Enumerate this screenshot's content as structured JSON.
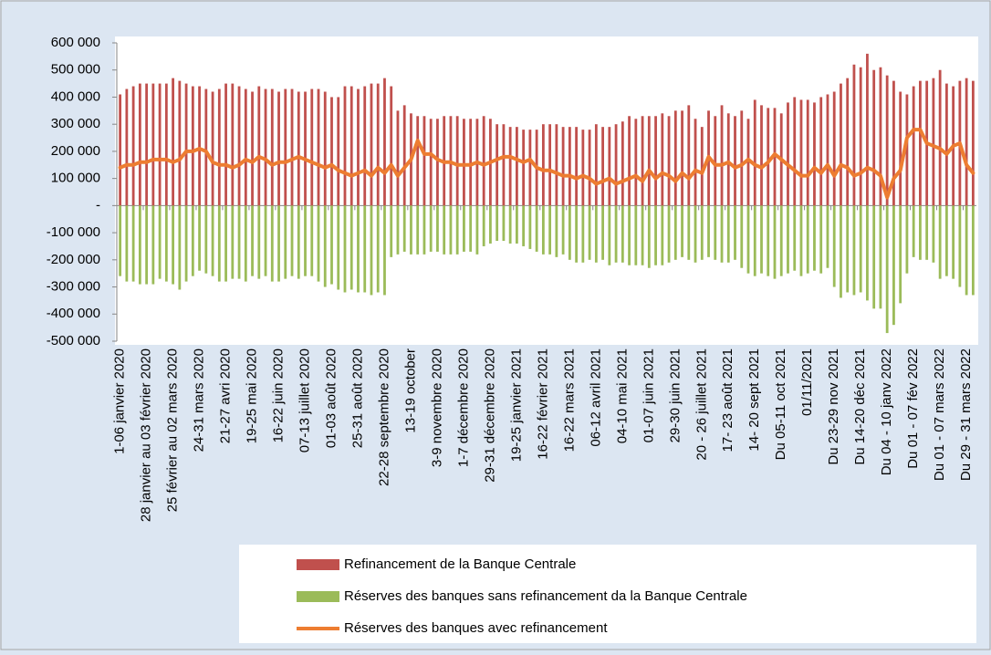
{
  "chart_data": {
    "type": "bar",
    "categories": [
      "1-06 janvier 2020",
      null,
      null,
      null,
      "28 janvier au 03 février 2020",
      null,
      null,
      null,
      "25 février au 02 mars 2020",
      null,
      null,
      null,
      "24-31 mars 2020",
      null,
      null,
      null,
      "21-27 avri 2020",
      null,
      null,
      null,
      "19-25 mai 2020",
      null,
      null,
      null,
      "16-22 juin 2020",
      null,
      null,
      null,
      "07-13 juillet 2020",
      null,
      null,
      null,
      "01-03 août 2020",
      null,
      null,
      null,
      "25-31 août 2020",
      null,
      null,
      null,
      "22-28 septembre 2020",
      null,
      null,
      null,
      "13-19 october",
      null,
      null,
      null,
      "3-9 novembre 2020",
      null,
      null,
      null,
      "1-7 décembre 2020",
      null,
      null,
      null,
      "29-31 décembre 2020",
      null,
      null,
      null,
      "19-25 janvier 2021",
      null,
      null,
      null,
      "16-22 février 2021",
      null,
      null,
      null,
      "16-22 mars 2021",
      null,
      null,
      null,
      "06-12 avril 2021",
      null,
      null,
      null,
      "04-10 mai 2021",
      null,
      null,
      null,
      "01-07 juin 2021",
      null,
      null,
      null,
      "29-30 juin 2021",
      null,
      null,
      null,
      "20 - 26 juillet 2021",
      null,
      null,
      null,
      "17- 23 août 2021",
      null,
      null,
      null,
      "14- 20 sept 2021",
      null,
      null,
      null,
      "Du 05-11 oct 2021",
      null,
      null,
      null,
      "01/11/2021",
      null,
      null,
      null,
      "Du 23-29 nov 2021",
      null,
      null,
      null,
      "Du 14-20 déc 2021",
      null,
      null,
      null,
      "Du 04 - 10 janv 2022",
      null,
      null,
      null,
      "Du 01 - 07 fév 2022",
      null,
      null,
      null,
      "Du 01 - 07 mars 2022",
      null,
      null,
      null,
      "Du 29 - 31 mars 2022",
      null
    ],
    "series": [
      {
        "name": "Refinancement de la Banque Centrale",
        "type": "bar",
        "color": "#c0504d",
        "values": [
          410000,
          430000,
          440000,
          450000,
          450000,
          450000,
          450000,
          450000,
          470000,
          460000,
          450000,
          440000,
          440000,
          430000,
          420000,
          430000,
          450000,
          450000,
          440000,
          430000,
          420000,
          440000,
          430000,
          430000,
          420000,
          430000,
          430000,
          420000,
          420000,
          430000,
          430000,
          420000,
          400000,
          400000,
          440000,
          440000,
          430000,
          440000,
          450000,
          450000,
          470000,
          440000,
          350000,
          370000,
          340000,
          330000,
          330000,
          320000,
          320000,
          330000,
          330000,
          330000,
          320000,
          320000,
          320000,
          330000,
          320000,
          300000,
          300000,
          290000,
          290000,
          280000,
          280000,
          280000,
          300000,
          300000,
          300000,
          290000,
          290000,
          290000,
          280000,
          280000,
          300000,
          290000,
          290000,
          300000,
          310000,
          330000,
          320000,
          330000,
          330000,
          330000,
          340000,
          330000,
          350000,
          350000,
          370000,
          320000,
          290000,
          350000,
          330000,
          370000,
          340000,
          330000,
          350000,
          320000,
          390000,
          370000,
          360000,
          360000,
          340000,
          380000,
          400000,
          390000,
          390000,
          380000,
          400000,
          410000,
          420000,
          450000,
          470000,
          520000,
          510000,
          560000,
          500000,
          510000,
          480000,
          460000,
          420000,
          410000,
          440000,
          460000,
          460000,
          470000,
          500000,
          450000,
          440000,
          460000,
          470000,
          460000
        ]
      },
      {
        "name": "Réserves des banques sans refinancement da la Banque Centrale",
        "type": "bar",
        "color": "#9bbb59",
        "values": [
          -260000,
          -280000,
          -280000,
          -290000,
          -290000,
          -290000,
          -270000,
          -280000,
          -290000,
          -310000,
          -280000,
          -260000,
          -240000,
          -250000,
          -260000,
          -280000,
          -280000,
          -270000,
          -270000,
          -280000,
          -260000,
          -270000,
          -260000,
          -280000,
          -280000,
          -270000,
          -260000,
          -270000,
          -260000,
          -260000,
          -280000,
          -300000,
          -290000,
          -310000,
          -320000,
          -310000,
          -320000,
          -320000,
          -330000,
          -320000,
          -330000,
          -190000,
          -180000,
          -170000,
          -180000,
          -180000,
          -180000,
          -170000,
          -170000,
          -180000,
          -180000,
          -180000,
          -170000,
          -170000,
          -180000,
          -150000,
          -140000,
          -130000,
          -130000,
          -140000,
          -140000,
          -150000,
          -160000,
          -170000,
          -180000,
          -180000,
          -190000,
          -180000,
          -200000,
          -210000,
          -210000,
          -200000,
          -210000,
          -200000,
          -220000,
          -210000,
          -210000,
          -220000,
          -220000,
          -220000,
          -230000,
          -220000,
          -220000,
          -210000,
          -200000,
          -190000,
          -200000,
          -210000,
          -200000,
          -190000,
          -200000,
          -210000,
          -210000,
          -200000,
          -230000,
          -250000,
          -260000,
          -250000,
          -260000,
          -270000,
          -260000,
          -250000,
          -240000,
          -260000,
          -250000,
          -240000,
          -250000,
          -230000,
          -300000,
          -340000,
          -320000,
          -330000,
          -320000,
          -350000,
          -380000,
          -380000,
          -470000,
          -440000,
          -360000,
          -250000,
          -190000,
          -200000,
          -200000,
          -210000,
          -270000,
          -260000,
          -270000,
          -300000,
          -330000,
          -330000
        ]
      },
      {
        "name": "Réserves des banques avec refinancement",
        "type": "line",
        "color": "#ed7d31",
        "values": [
          140000,
          150000,
          150000,
          160000,
          160000,
          170000,
          170000,
          170000,
          160000,
          170000,
          200000,
          200000,
          210000,
          200000,
          160000,
          150000,
          150000,
          140000,
          150000,
          170000,
          160000,
          180000,
          170000,
          150000,
          160000,
          160000,
          170000,
          180000,
          170000,
          160000,
          150000,
          140000,
          150000,
          130000,
          120000,
          110000,
          120000,
          130000,
          110000,
          140000,
          120000,
          150000,
          110000,
          140000,
          170000,
          240000,
          190000,
          190000,
          170000,
          160000,
          160000,
          150000,
          150000,
          150000,
          160000,
          150000,
          160000,
          170000,
          180000,
          180000,
          170000,
          160000,
          170000,
          140000,
          130000,
          130000,
          120000,
          110000,
          110000,
          100000,
          110000,
          100000,
          80000,
          90000,
          100000,
          80000,
          90000,
          100000,
          110000,
          90000,
          130000,
          100000,
          120000,
          110000,
          90000,
          120000,
          100000,
          130000,
          120000,
          180000,
          150000,
          150000,
          160000,
          140000,
          150000,
          170000,
          150000,
          140000,
          160000,
          190000,
          170000,
          150000,
          130000,
          110000,
          110000,
          140000,
          120000,
          150000,
          110000,
          150000,
          140000,
          110000,
          120000,
          140000,
          130000,
          110000,
          30000,
          100000,
          130000,
          250000,
          280000,
          280000,
          230000,
          220000,
          210000,
          190000,
          220000,
          230000,
          150000,
          120000
        ]
      }
    ],
    "ylim": [
      -500000,
      600000
    ],
    "yticks": [
      {
        "value": -500000,
        "label": "-500 000"
      },
      {
        "value": -400000,
        "label": "-400 000"
      },
      {
        "value": -300000,
        "label": "-300 000"
      },
      {
        "value": -200000,
        "label": "-200 000"
      },
      {
        "value": -100000,
        "label": "-100 000"
      },
      {
        "value": 0,
        "label": "-"
      },
      {
        "value": 100000,
        "label": "100 000"
      },
      {
        "value": 200000,
        "label": "200 000"
      },
      {
        "value": 300000,
        "label": "300 000"
      },
      {
        "value": 400000,
        "label": "400 000"
      },
      {
        "value": 500000,
        "label": "500 000"
      },
      {
        "value": 600000,
        "label": "600 000"
      }
    ],
    "grid": false,
    "legend": "bottom"
  }
}
